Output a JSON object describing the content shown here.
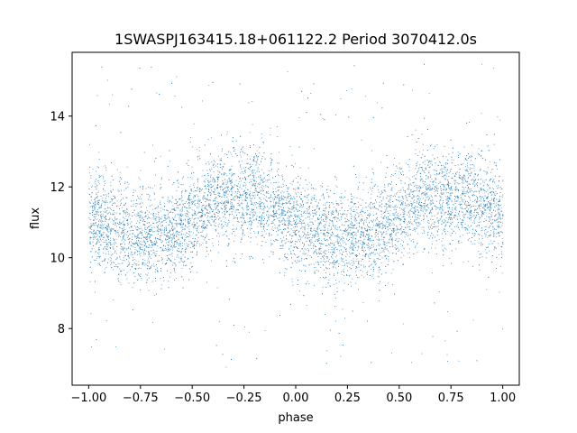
{
  "chart_data": {
    "type": "scatter",
    "title": "1SWASPJ163415.18+061122.2 Period 3070412.0s",
    "xlabel": "phase",
    "ylabel": "flux",
    "xlim": [
      -1.08,
      1.08
    ],
    "ylim": [
      6.4,
      15.8
    ],
    "xticks": [
      -1.0,
      -0.75,
      -0.5,
      -0.25,
      0.0,
      0.25,
      0.5,
      0.75,
      1.0
    ],
    "xtick_labels": [
      "−1.00",
      "−0.75",
      "−0.50",
      "−0.25",
      "0.00",
      "0.25",
      "0.50",
      "0.75",
      "1.00"
    ],
    "yticks": [
      8,
      10,
      12,
      14
    ],
    "ytick_labels": [
      "8",
      "10",
      "12",
      "14"
    ],
    "grid": false,
    "point_color": "#1f77b4",
    "series": [
      {
        "x_range": [
          -1.0,
          1.0
        ],
        "typical_flux_band": [
          9.5,
          12.8
        ],
        "outlier_flux_range": [
          6.9,
          15.5
        ],
        "trend_phase": [
          -1.0,
          -0.8,
          -0.6,
          -0.4,
          -0.2,
          0.0,
          0.2,
          0.4,
          0.6,
          0.8,
          1.0
        ],
        "trend_flux": [
          11.2,
          10.6,
          10.7,
          11.7,
          11.8,
          11.0,
          10.6,
          10.8,
          11.7,
          11.8,
          11.2
        ]
      }
    ]
  }
}
